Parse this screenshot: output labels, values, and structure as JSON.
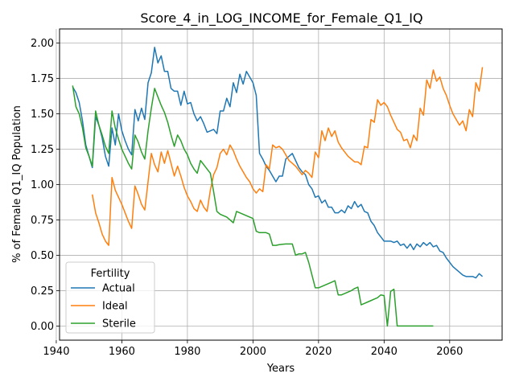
{
  "chart_data": {
    "type": "line",
    "title": "Score_4_in_LOG_INCOME_for_Female_Q1_IQ",
    "xlabel": "Years",
    "ylabel": "% of Female Q1_IQ Population",
    "xlim": [
      1941,
      2076
    ],
    "ylim": [
      -0.1,
      2.1
    ],
    "xticks": [
      1940,
      1960,
      1980,
      2000,
      2020,
      2040,
      2060
    ],
    "yticks": [
      0.0,
      0.25,
      0.5,
      0.75,
      1.0,
      1.25,
      1.5,
      1.75,
      2.0
    ],
    "ytick_labels": [
      "0.00",
      "0.25",
      "0.50",
      "0.75",
      "1.00",
      "1.25",
      "1.50",
      "1.75",
      "2.00"
    ],
    "grid": true,
    "legend": {
      "title": "Fertility",
      "placement": "lower-left"
    },
    "series": [
      {
        "name": "Actual",
        "color": "#1f77b4",
        "x": [
          1945,
          1946,
          1947,
          1948,
          1949,
          1950,
          1951,
          1952,
          1953,
          1954,
          1955,
          1956,
          1957,
          1958,
          1959,
          1960,
          1961,
          1962,
          1963,
          1964,
          1965,
          1966,
          1967,
          1968,
          1969,
          1970,
          1971,
          1972,
          1973,
          1974,
          1975,
          1976,
          1977,
          1978,
          1979,
          1980,
          1981,
          1982,
          1983,
          1984,
          1985,
          1986,
          1987,
          1988,
          1989,
          1990,
          1991,
          1992,
          1993,
          1994,
          1995,
          1996,
          1997,
          1998,
          1999,
          2000,
          2001,
          2002,
          2003,
          2004,
          2005,
          2006,
          2007,
          2008,
          2009,
          2010,
          2011,
          2012,
          2013,
          2014,
          2015,
          2016,
          2017,
          2018,
          2019,
          2020,
          2021,
          2022,
          2023,
          2024,
          2025,
          2026,
          2027,
          2028,
          2029,
          2030,
          2031,
          2032,
          2033,
          2034,
          2035,
          2036,
          2037,
          2038,
          2039,
          2040,
          2041,
          2042,
          2043,
          2044,
          2045,
          2046,
          2047,
          2048,
          2049,
          2050,
          2051,
          2052,
          2053,
          2054,
          2055,
          2056,
          2057,
          2058,
          2059,
          2060,
          2061,
          2062,
          2063,
          2064,
          2065,
          2066,
          2067,
          2068,
          2069,
          2070
        ],
        "values": [
          1.69,
          1.65,
          1.58,
          1.45,
          1.28,
          1.2,
          1.12,
          1.48,
          1.42,
          1.33,
          1.2,
          1.13,
          1.4,
          1.28,
          1.5,
          1.38,
          1.31,
          1.25,
          1.21,
          1.53,
          1.45,
          1.54,
          1.46,
          1.72,
          1.79,
          1.97,
          1.86,
          1.91,
          1.8,
          1.8,
          1.68,
          1.66,
          1.66,
          1.56,
          1.66,
          1.57,
          1.58,
          1.5,
          1.45,
          1.48,
          1.43,
          1.37,
          1.38,
          1.39,
          1.36,
          1.52,
          1.52,
          1.61,
          1.55,
          1.72,
          1.65,
          1.78,
          1.71,
          1.8,
          1.76,
          1.72,
          1.63,
          1.22,
          1.18,
          1.13,
          1.1,
          1.06,
          1.02,
          1.06,
          1.06,
          1.18,
          1.2,
          1.22,
          1.17,
          1.12,
          1.09,
          1.07,
          1.0,
          0.97,
          0.91,
          0.92,
          0.87,
          0.89,
          0.84,
          0.84,
          0.8,
          0.8,
          0.82,
          0.8,
          0.85,
          0.83,
          0.88,
          0.84,
          0.86,
          0.81,
          0.8,
          0.74,
          0.71,
          0.66,
          0.63,
          0.6,
          0.6,
          0.6,
          0.59,
          0.6,
          0.57,
          0.58,
          0.55,
          0.58,
          0.54,
          0.58,
          0.56,
          0.59,
          0.57,
          0.59,
          0.56,
          0.57,
          0.53,
          0.52,
          0.48,
          0.45,
          0.42,
          0.4,
          0.38,
          0.36,
          0.35,
          0.35,
          0.35,
          0.34,
          0.37,
          0.35
        ]
      },
      {
        "name": "Ideal",
        "color": "#ff7f0e",
        "x": [
          1951,
          1952,
          1953,
          1954,
          1955,
          1956,
          1957,
          1958,
          1959,
          1960,
          1961,
          1962,
          1963,
          1964,
          1965,
          1966,
          1967,
          1968,
          1969,
          1970,
          1971,
          1972,
          1973,
          1974,
          1975,
          1976,
          1977,
          1978,
          1979,
          1980,
          1981,
          1982,
          1983,
          1984,
          1985,
          1986,
          1987,
          1988,
          1989,
          1990,
          1991,
          1992,
          1993,
          1994,
          1995,
          1996,
          1997,
          1998,
          1999,
          2000,
          2001,
          2002,
          2003,
          2004,
          2005,
          2006,
          2007,
          2008,
          2009,
          2010,
          2011,
          2012,
          2013,
          2014,
          2015,
          2016,
          2017,
          2018,
          2019,
          2020,
          2021,
          2022,
          2023,
          2024,
          2025,
          2026,
          2027,
          2028,
          2029,
          2030,
          2031,
          2032,
          2033,
          2034,
          2035,
          2036,
          2037,
          2038,
          2039,
          2040,
          2041,
          2042,
          2043,
          2044,
          2045,
          2046,
          2047,
          2048,
          2049,
          2050,
          2051,
          2052,
          2053,
          2054,
          2055,
          2056,
          2057,
          2058,
          2059,
          2060,
          2061,
          2062,
          2063,
          2064,
          2065,
          2066,
          2067,
          2068,
          2069,
          2070
        ],
        "values": [
          0.93,
          0.8,
          0.73,
          0.65,
          0.6,
          0.57,
          1.05,
          0.96,
          0.91,
          0.86,
          0.8,
          0.74,
          0.69,
          0.99,
          0.93,
          0.86,
          0.82,
          1.02,
          1.22,
          1.14,
          1.09,
          1.23,
          1.15,
          1.24,
          1.15,
          1.06,
          1.13,
          1.06,
          0.98,
          0.92,
          0.88,
          0.83,
          0.81,
          0.89,
          0.84,
          0.81,
          0.96,
          1.07,
          1.12,
          1.22,
          1.25,
          1.21,
          1.28,
          1.24,
          1.18,
          1.13,
          1.09,
          1.05,
          1.02,
          0.97,
          0.94,
          0.97,
          0.95,
          1.14,
          1.11,
          1.28,
          1.26,
          1.27,
          1.25,
          1.21,
          1.17,
          1.15,
          1.13,
          1.1,
          1.07,
          1.1,
          1.08,
          1.05,
          1.23,
          1.19,
          1.38,
          1.31,
          1.4,
          1.34,
          1.38,
          1.3,
          1.26,
          1.23,
          1.2,
          1.18,
          1.16,
          1.16,
          1.14,
          1.27,
          1.26,
          1.46,
          1.44,
          1.6,
          1.56,
          1.58,
          1.55,
          1.49,
          1.44,
          1.39,
          1.37,
          1.31,
          1.32,
          1.26,
          1.35,
          1.31,
          1.54,
          1.49,
          1.74,
          1.68,
          1.81,
          1.73,
          1.76,
          1.68,
          1.63,
          1.56,
          1.5,
          1.46,
          1.42,
          1.45,
          1.38,
          1.53,
          1.48,
          1.72,
          1.66,
          1.83
        ]
      },
      {
        "name": "Sterile",
        "color": "#2ca02c",
        "x": [
          1945,
          1946,
          1947,
          1948,
          1949,
          1950,
          1951,
          1952,
          1953,
          1954,
          1955,
          1956,
          1957,
          1958,
          1959,
          1960,
          1961,
          1962,
          1963,
          1964,
          1965,
          1966,
          1967,
          1968,
          1969,
          1970,
          1971,
          1972,
          1973,
          1974,
          1975,
          1976,
          1977,
          1978,
          1979,
          1980,
          1981,
          1982,
          1983,
          1984,
          1985,
          1986,
          1987,
          1988,
          1989,
          1990,
          1991,
          1992,
          1993,
          1994,
          1995,
          1996,
          1997,
          1998,
          1999,
          2000,
          2001,
          2002,
          2003,
          2004,
          2005,
          2006,
          2007,
          2008,
          2009,
          2010,
          2011,
          2012,
          2013,
          2014,
          2015,
          2016,
          2017,
          2018,
          2019,
          2020,
          2021,
          2022,
          2023,
          2024,
          2025,
          2026,
          2027,
          2028,
          2029,
          2030,
          2031,
          2032,
          2033,
          2034,
          2035,
          2036,
          2037,
          2038,
          2039,
          2040,
          2041,
          2042,
          2043,
          2044,
          2045,
          2046,
          2047,
          2048,
          2049,
          2050,
          2051,
          2052,
          2053,
          2054,
          2055
        ],
        "values": [
          1.7,
          1.55,
          1.5,
          1.4,
          1.26,
          1.2,
          1.13,
          1.52,
          1.42,
          1.35,
          1.27,
          1.22,
          1.52,
          1.4,
          1.32,
          1.25,
          1.2,
          1.15,
          1.11,
          1.35,
          1.3,
          1.23,
          1.18,
          1.38,
          1.54,
          1.68,
          1.62,
          1.56,
          1.51,
          1.44,
          1.35,
          1.27,
          1.35,
          1.31,
          1.25,
          1.21,
          1.15,
          1.11,
          1.08,
          1.17,
          1.14,
          1.11,
          1.08,
          0.95,
          0.81,
          0.79,
          0.78,
          0.77,
          0.75,
          0.73,
          0.81,
          0.8,
          0.79,
          0.78,
          0.77,
          0.76,
          0.67,
          0.66,
          0.66,
          0.66,
          0.65,
          0.57,
          0.57,
          0.575,
          0.578,
          0.58,
          0.58,
          0.58,
          0.5,
          0.51,
          0.51,
          0.52,
          0.45,
          0.36,
          0.27,
          0.27,
          0.28,
          0.29,
          0.3,
          0.31,
          0.32,
          0.22,
          0.22,
          0.23,
          0.24,
          0.25,
          0.265,
          0.275,
          0.15,
          0.16,
          0.17,
          0.18,
          0.19,
          0.2,
          0.22,
          0.215,
          0.0,
          0.245,
          0.26,
          0.0,
          0.0,
          0.0,
          0.0,
          0.0,
          0.0,
          0.0,
          0.0,
          0.0,
          0.0,
          0.0,
          0.0
        ]
      }
    ]
  }
}
